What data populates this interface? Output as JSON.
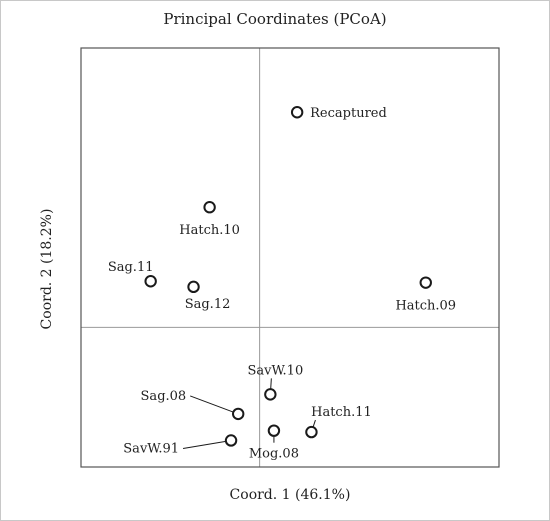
{
  "chart_data": {
    "type": "scatter",
    "title": "Principal Coordinates (PCoA)",
    "xlabel": "Coord. 1 (46.1%)",
    "ylabel": "Coord. 2 (18.2%)",
    "xlim": [
      -1.0,
      1.34
    ],
    "ylim": [
      -1.0,
      2.0
    ],
    "grid": false,
    "reference_lines": {
      "x": 0,
      "y": 0
    },
    "points": [
      {
        "label": "Recaptured",
        "x": 0.21,
        "y": 1.54,
        "label_pos": "right"
      },
      {
        "label": "Hatch.10",
        "x": -0.28,
        "y": 0.86,
        "label_pos": "below"
      },
      {
        "label": "Sag.11",
        "x": -0.61,
        "y": 0.33,
        "label_pos": "above-left"
      },
      {
        "label": "Sag.12",
        "x": -0.37,
        "y": 0.29,
        "label_pos": "below-right"
      },
      {
        "label": "Hatch.09",
        "x": 0.93,
        "y": 0.32,
        "label_pos": "below"
      },
      {
        "label": "SavW.10",
        "x": 0.06,
        "y": -0.48,
        "label_pos": "above",
        "leader": true
      },
      {
        "label": "Sag.08",
        "x": -0.12,
        "y": -0.62,
        "label_pos": "left",
        "leader": true
      },
      {
        "label": "Hatch.11",
        "x": 0.29,
        "y": -0.75,
        "label_pos": "above-right",
        "leader": true
      },
      {
        "label": "Mog.08",
        "x": 0.08,
        "y": -0.74,
        "label_pos": "below"
      },
      {
        "label": "SavW.91",
        "x": -0.16,
        "y": -0.81,
        "label_pos": "left",
        "leader": true
      }
    ]
  },
  "colors": {
    "marker": "#1a1a1a",
    "axes": "#555555",
    "reference_line": "#999999",
    "text": "#222222"
  }
}
